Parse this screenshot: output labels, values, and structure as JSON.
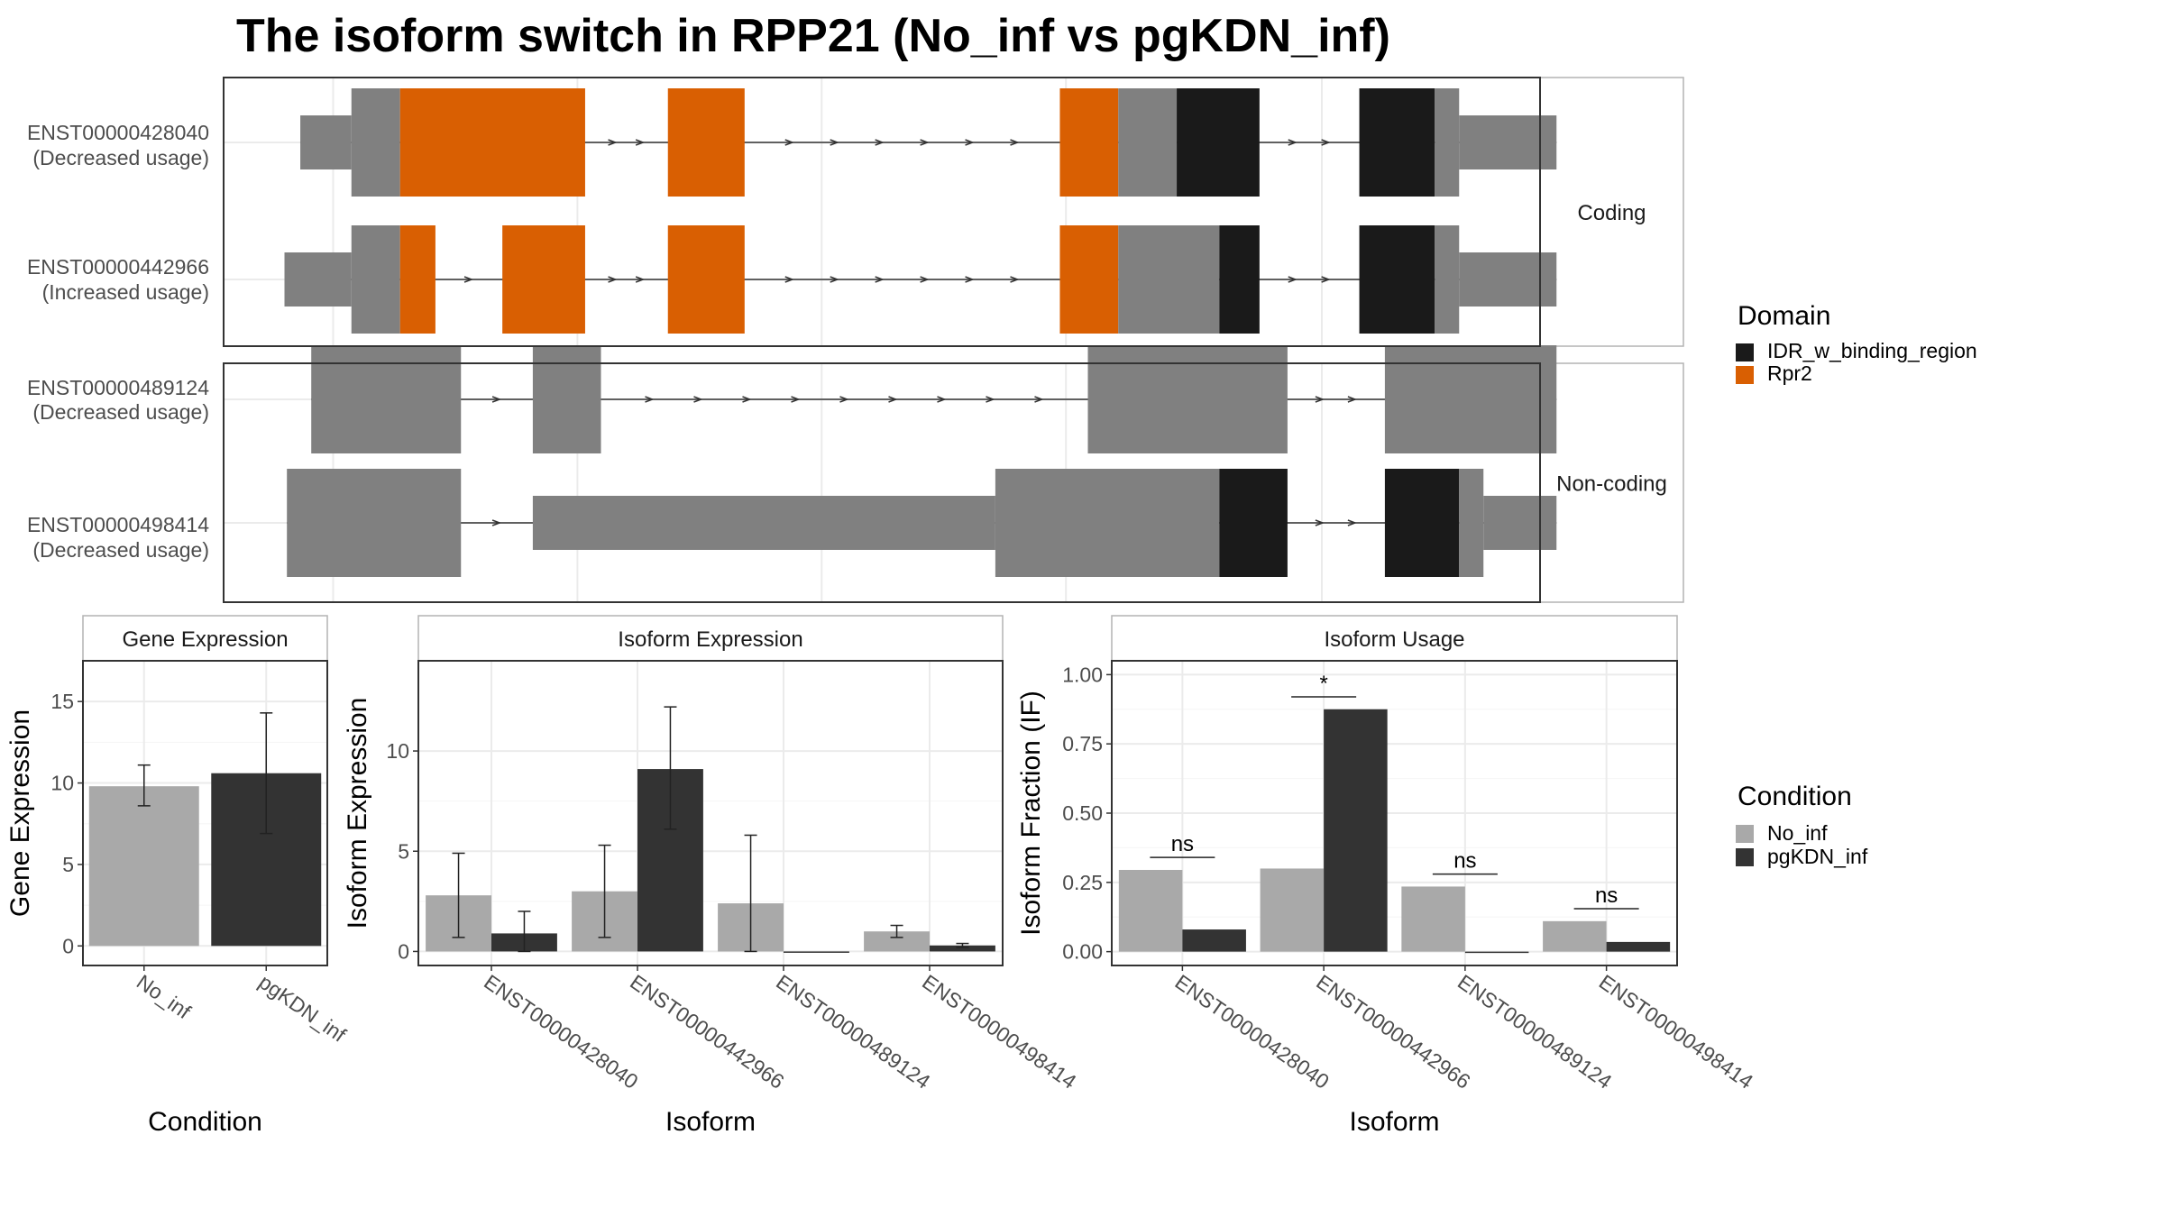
{
  "title": "The isoform switch in RPP21 (No_inf vs pgKDN_inf)",
  "colors": {
    "utr_grey": "#808080",
    "domain_idr": "#1a1a1a",
    "domain_rpr2": "#d95f02",
    "cond_no_inf": "#a9a9a9",
    "cond_pgkdn_inf": "#333333",
    "grid": "#ebebeb",
    "frame": "#333333",
    "strip_border": "#b3b3b3"
  },
  "structure": {
    "facets": [
      "Coding",
      "Non-coding"
    ],
    "coord_range": [
      0,
      100
    ],
    "isoforms": [
      {
        "id": "ENST00000428040",
        "usage": "(Decreased usage)",
        "facet": "Coding",
        "exons": [
          {
            "start": 6.3,
            "end": 10.5,
            "type": "utr"
          },
          {
            "start": 10.5,
            "end": 14.5,
            "type": "cds"
          },
          {
            "start": 14.5,
            "end": 29.7,
            "type": "cds",
            "domain": "Rpr2"
          },
          {
            "start": 36.5,
            "end": 42.8,
            "type": "cds",
            "domain": "Rpr2"
          },
          {
            "start": 68.7,
            "end": 73.5,
            "type": "cds",
            "domain": "Rpr2"
          },
          {
            "start": 73.5,
            "end": 78.3,
            "type": "cds"
          },
          {
            "start": 78.3,
            "end": 85.1,
            "type": "cds",
            "domain": "IDR_w_binding_region"
          },
          {
            "start": 93.3,
            "end": 99.5,
            "type": "cds",
            "domain": "IDR_w_binding_region"
          },
          {
            "start": 99.5,
            "end": 101.5,
            "type": "cds"
          },
          {
            "start": 101.5,
            "end": 109.5,
            "type": "utr"
          }
        ]
      },
      {
        "id": "ENST00000442966",
        "usage": "(Increased usage)",
        "facet": "Coding",
        "exons": [
          {
            "start": 5.0,
            "end": 10.5,
            "type": "utr"
          },
          {
            "start": 10.5,
            "end": 14.5,
            "type": "cds"
          },
          {
            "start": 14.5,
            "end": 17.4,
            "type": "cds",
            "domain": "Rpr2"
          },
          {
            "start": 22.9,
            "end": 29.7,
            "type": "cds",
            "domain": "Rpr2"
          },
          {
            "start": 36.5,
            "end": 42.8,
            "type": "cds",
            "domain": "Rpr2"
          },
          {
            "start": 68.7,
            "end": 73.5,
            "type": "cds",
            "domain": "Rpr2"
          },
          {
            "start": 73.5,
            "end": 81.8,
            "type": "cds"
          },
          {
            "start": 81.8,
            "end": 85.1,
            "type": "cds",
            "domain": "IDR_w_binding_region"
          },
          {
            "start": 93.3,
            "end": 99.5,
            "type": "cds",
            "domain": "IDR_w_binding_region"
          },
          {
            "start": 99.5,
            "end": 101.5,
            "type": "cds"
          },
          {
            "start": 101.5,
            "end": 109.5,
            "type": "utr"
          }
        ]
      },
      {
        "id": "ENST00000489124",
        "usage": "(Decreased usage)",
        "facet": "Non-coding",
        "exons": [
          {
            "start": 7.2,
            "end": 19.5,
            "type": "cds"
          },
          {
            "start": 25.4,
            "end": 31.0,
            "type": "cds"
          },
          {
            "start": 71.0,
            "end": 87.4,
            "type": "cds"
          },
          {
            "start": 95.4,
            "end": 109.5,
            "type": "cds"
          }
        ]
      },
      {
        "id": "ENST00000498414",
        "usage": "(Decreased usage)",
        "facet": "Non-coding",
        "exons": [
          {
            "start": 5.2,
            "end": 19.5,
            "type": "cds"
          },
          {
            "start": 25.4,
            "end": 63.4,
            "type": "utr"
          },
          {
            "start": 63.4,
            "end": 81.8,
            "type": "cds"
          },
          {
            "start": 81.8,
            "end": 87.4,
            "type": "cds",
            "domain": "IDR_w_binding_region"
          },
          {
            "start": 95.4,
            "end": 101.5,
            "type": "cds",
            "domain": "IDR_w_binding_region"
          },
          {
            "start": 101.5,
            "end": 103.5,
            "type": "cds"
          },
          {
            "start": 103.5,
            "end": 109.5,
            "type": "utr"
          }
        ]
      }
    ]
  },
  "legend_domain": {
    "title": "Domain",
    "items": [
      {
        "label": "IDR_w_binding_region",
        "color": "#1a1a1a"
      },
      {
        "label": "Rpr2",
        "color": "#d95f02"
      }
    ]
  },
  "legend_condition": {
    "title": "Condition",
    "items": [
      {
        "label": "No_inf",
        "color": "#a9a9a9"
      },
      {
        "label": "pgKDN_inf",
        "color": "#333333"
      }
    ]
  },
  "chart_data": [
    {
      "type": "bar",
      "title": "Gene Expression",
      "xlabel": "Condition",
      "ylabel": "Gene Expression",
      "categories": [
        "No_inf",
        "pgKDN_inf"
      ],
      "values": [
        9.8,
        10.6
      ],
      "error_low": [
        8.6,
        6.9
      ],
      "error_high": [
        11.1,
        14.3
      ],
      "ylim": [
        -1.2,
        17.5
      ],
      "yticks": [
        0,
        5,
        10,
        15
      ]
    },
    {
      "type": "bar",
      "title": "Isoform Expression",
      "xlabel": "Isoform",
      "ylabel": "Isoform Expression",
      "categories": [
        "ENST00000428040",
        "ENST00000442966",
        "ENST00000489124",
        "ENST00000498414"
      ],
      "series": [
        {
          "name": "No_inf",
          "values": [
            2.8,
            3.0,
            2.4,
            1.0
          ],
          "error_low": [
            0.7,
            0.7,
            0.0,
            0.7
          ],
          "error_high": [
            4.9,
            5.3,
            5.8,
            1.3
          ]
        },
        {
          "name": "pgKDN_inf",
          "values": [
            0.9,
            9.1,
            0.0,
            0.3
          ],
          "error_low": [
            0.0,
            6.1,
            0.0,
            0.2
          ],
          "error_high": [
            2.0,
            12.2,
            0.0,
            0.4
          ]
        }
      ],
      "ylim": [
        -0.7,
        14.5
      ],
      "yticks": [
        0,
        5,
        10
      ]
    },
    {
      "type": "bar",
      "title": "Isoform Usage",
      "xlabel": "Isoform",
      "ylabel": "Isoform Fraction (IF)",
      "categories": [
        "ENST00000428040",
        "ENST00000442966",
        "ENST00000489124",
        "ENST00000498414"
      ],
      "series": [
        {
          "name": "No_inf",
          "values": [
            0.295,
            0.3,
            0.235,
            0.11
          ]
        },
        {
          "name": "pgKDN_inf",
          "values": [
            0.08,
            0.875,
            0.0,
            0.035
          ]
        }
      ],
      "significance": [
        "ns",
        "*",
        "ns",
        "ns"
      ],
      "ylim": [
        -0.05,
        1.05
      ],
      "yticks": [
        0.0,
        0.25,
        0.5,
        0.75,
        1.0
      ],
      "ytick_labels": [
        "0.00",
        "0.25",
        "0.50",
        "0.75",
        "1.00"
      ]
    }
  ]
}
